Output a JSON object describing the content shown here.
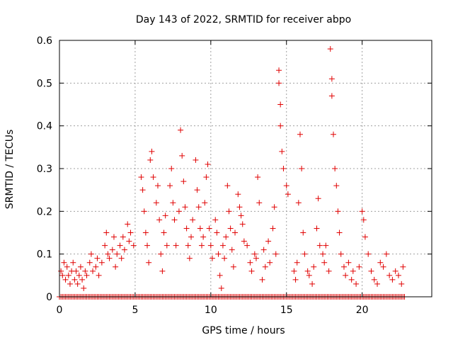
{
  "chart_data": {
    "type": "scatter",
    "title": "Day 143 of 2022, SRMTID for receiver abpo",
    "xlabel": "GPS time / hours",
    "ylabel": "SRMTID / TECUs",
    "xlim": [
      0,
      24.6
    ],
    "ylim": [
      0,
      0.6
    ],
    "x_ticks": [
      0,
      5,
      10,
      15,
      20
    ],
    "y_ticks": [
      0,
      0.1,
      0.2,
      0.3,
      0.4,
      0.5,
      0.6
    ],
    "x_tick_labels": [
      "0",
      "5",
      "10",
      "15",
      "20"
    ],
    "y_tick_labels": [
      "0",
      "0.1",
      "0.2",
      "0.3",
      "0.4",
      "0.5",
      "0.6"
    ],
    "grid": true,
    "marker": "+",
    "color": "#e00000",
    "series": [
      {
        "name": "SRMTID",
        "points": [
          [
            0.1,
            0.06
          ],
          [
            0.2,
            0.05
          ],
          [
            0.3,
            0.08
          ],
          [
            0.4,
            0.04
          ],
          [
            0.5,
            0.07
          ],
          [
            0.6,
            0.05
          ],
          [
            0.7,
            0.03
          ],
          [
            0.8,
            0.06
          ],
          [
            0.9,
            0.08
          ],
          [
            1.0,
            0.04
          ],
          [
            1.1,
            0.06
          ],
          [
            1.2,
            0.03
          ],
          [
            1.3,
            0.05
          ],
          [
            1.4,
            0.07
          ],
          [
            1.5,
            0.04
          ],
          [
            1.6,
            0.02
          ],
          [
            1.7,
            0.06
          ],
          [
            1.8,
            0.05
          ],
          [
            2.0,
            0.08
          ],
          [
            2.1,
            0.1
          ],
          [
            2.2,
            0.06
          ],
          [
            2.4,
            0.07
          ],
          [
            2.5,
            0.09
          ],
          [
            2.6,
            0.05
          ],
          [
            2.8,
            0.08
          ],
          [
            3.0,
            0.12
          ],
          [
            3.1,
            0.15
          ],
          [
            3.2,
            0.1
          ],
          [
            3.3,
            0.09
          ],
          [
            3.5,
            0.11
          ],
          [
            3.6,
            0.14
          ],
          [
            3.7,
            0.07
          ],
          [
            3.8,
            0.1
          ],
          [
            4.0,
            0.12
          ],
          [
            4.1,
            0.09
          ],
          [
            4.2,
            0.14
          ],
          [
            4.3,
            0.11
          ],
          [
            4.5,
            0.17
          ],
          [
            4.6,
            0.13
          ],
          [
            4.7,
            0.15
          ],
          [
            4.9,
            0.12
          ],
          [
            5.4,
            0.28
          ],
          [
            5.5,
            0.25
          ],
          [
            5.6,
            0.2
          ],
          [
            5.7,
            0.15
          ],
          [
            5.8,
            0.12
          ],
          [
            5.9,
            0.08
          ],
          [
            6.0,
            0.32
          ],
          [
            6.1,
            0.34
          ],
          [
            6.2,
            0.28
          ],
          [
            6.4,
            0.22
          ],
          [
            6.5,
            0.26
          ],
          [
            6.6,
            0.18
          ],
          [
            6.7,
            0.1
          ],
          [
            6.8,
            0.06
          ],
          [
            6.9,
            0.15
          ],
          [
            7.0,
            0.19
          ],
          [
            7.1,
            0.12
          ],
          [
            7.3,
            0.26
          ],
          [
            7.4,
            0.3
          ],
          [
            7.5,
            0.22
          ],
          [
            7.6,
            0.18
          ],
          [
            7.7,
            0.12
          ],
          [
            7.9,
            0.2
          ],
          [
            8.0,
            0.39
          ],
          [
            8.1,
            0.33
          ],
          [
            8.2,
            0.27
          ],
          [
            8.3,
            0.21
          ],
          [
            8.4,
            0.16
          ],
          [
            8.5,
            0.12
          ],
          [
            8.6,
            0.09
          ],
          [
            8.7,
            0.14
          ],
          [
            8.8,
            0.18
          ],
          [
            9.0,
            0.32
          ],
          [
            9.1,
            0.25
          ],
          [
            9.2,
            0.21
          ],
          [
            9.3,
            0.16
          ],
          [
            9.4,
            0.12
          ],
          [
            9.5,
            0.14
          ],
          [
            9.6,
            0.22
          ],
          [
            9.7,
            0.28
          ],
          [
            9.8,
            0.31
          ],
          [
            9.9,
            0.16
          ],
          [
            10.0,
            0.12
          ],
          [
            10.1,
            0.09
          ],
          [
            10.3,
            0.18
          ],
          [
            10.4,
            0.15
          ],
          [
            10.5,
            0.1
          ],
          [
            10.6,
            0.05
          ],
          [
            10.7,
            0.02
          ],
          [
            10.8,
            0.12
          ],
          [
            10.9,
            0.09
          ],
          [
            11.0,
            0.14
          ],
          [
            11.1,
            0.26
          ],
          [
            11.2,
            0.2
          ],
          [
            11.3,
            0.16
          ],
          [
            11.4,
            0.11
          ],
          [
            11.5,
            0.07
          ],
          [
            11.6,
            0.15
          ],
          [
            11.8,
            0.24
          ],
          [
            11.9,
            0.21
          ],
          [
            12.0,
            0.19
          ],
          [
            12.1,
            0.17
          ],
          [
            12.2,
            0.13
          ],
          [
            12.4,
            0.12
          ],
          [
            12.6,
            0.08
          ],
          [
            12.7,
            0.06
          ],
          [
            12.9,
            0.1
          ],
          [
            13.0,
            0.09
          ],
          [
            13.1,
            0.28
          ],
          [
            13.2,
            0.22
          ],
          [
            13.4,
            0.04
          ],
          [
            13.5,
            0.11
          ],
          [
            13.6,
            0.07
          ],
          [
            13.8,
            0.13
          ],
          [
            13.9,
            0.08
          ],
          [
            14.1,
            0.16
          ],
          [
            14.2,
            0.21
          ],
          [
            14.3,
            0.1
          ],
          [
            14.5,
            0.53
          ],
          [
            14.5,
            0.5
          ],
          [
            14.6,
            0.45
          ],
          [
            14.6,
            0.4
          ],
          [
            14.7,
            0.34
          ],
          [
            14.8,
            0.3
          ],
          [
            15.0,
            0.26
          ],
          [
            15.1,
            0.24
          ],
          [
            15.5,
            0.06
          ],
          [
            15.6,
            0.04
          ],
          [
            15.7,
            0.08
          ],
          [
            15.8,
            0.22
          ],
          [
            15.9,
            0.38
          ],
          [
            16.0,
            0.3
          ],
          [
            16.1,
            0.15
          ],
          [
            16.2,
            0.1
          ],
          [
            16.4,
            0.06
          ],
          [
            16.5,
            0.05
          ],
          [
            16.7,
            0.03
          ],
          [
            16.8,
            0.07
          ],
          [
            17.0,
            0.16
          ],
          [
            17.1,
            0.23
          ],
          [
            17.2,
            0.12
          ],
          [
            17.4,
            0.1
          ],
          [
            17.5,
            0.08
          ],
          [
            17.6,
            0.12
          ],
          [
            17.8,
            0.06
          ],
          [
            17.9,
            0.58
          ],
          [
            18.0,
            0.51
          ],
          [
            18.0,
            0.47
          ],
          [
            18.1,
            0.38
          ],
          [
            18.2,
            0.3
          ],
          [
            18.3,
            0.26
          ],
          [
            18.4,
            0.2
          ],
          [
            18.5,
            0.15
          ],
          [
            18.6,
            0.1
          ],
          [
            18.8,
            0.07
          ],
          [
            18.9,
            0.05
          ],
          [
            19.1,
            0.08
          ],
          [
            19.3,
            0.04
          ],
          [
            19.4,
            0.06
          ],
          [
            19.6,
            0.03
          ],
          [
            19.8,
            0.07
          ],
          [
            20.0,
            0.2
          ],
          [
            20.1,
            0.18
          ],
          [
            20.2,
            0.14
          ],
          [
            20.4,
            0.1
          ],
          [
            20.6,
            0.06
          ],
          [
            20.8,
            0.04
          ],
          [
            21.0,
            0.03
          ],
          [
            21.2,
            0.08
          ],
          [
            21.4,
            0.07
          ],
          [
            21.6,
            0.1
          ],
          [
            21.8,
            0.05
          ],
          [
            22.0,
            0.04
          ],
          [
            22.2,
            0.06
          ],
          [
            22.4,
            0.05
          ],
          [
            22.6,
            0.03
          ],
          [
            22.7,
            0.07
          ]
        ]
      }
    ],
    "zero_band": {
      "x_start": 0,
      "x_end": 22.8,
      "step": 0.1,
      "y": 0
    }
  }
}
